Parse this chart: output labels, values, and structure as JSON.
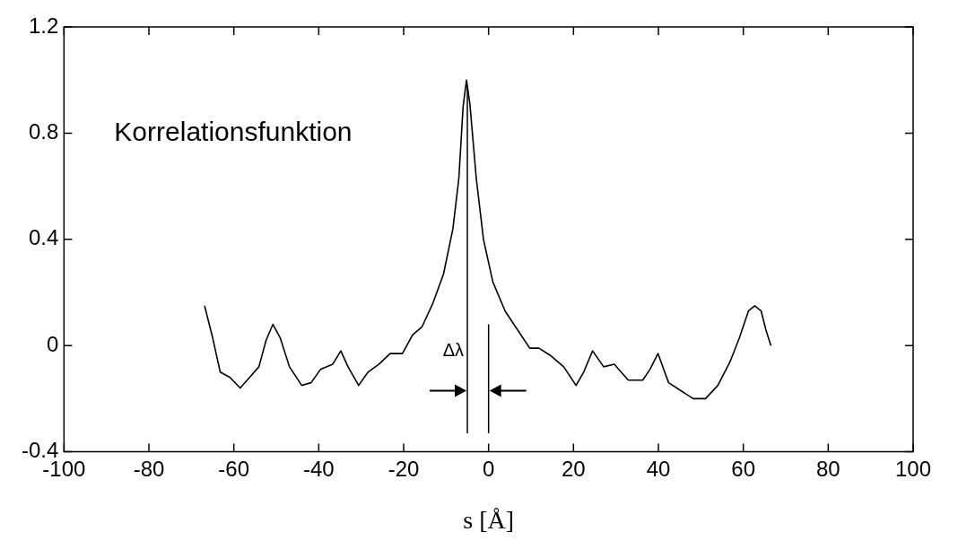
{
  "chart_data": {
    "type": "line",
    "xlabel": "s [Å]",
    "x": [
      -66.9,
      -65,
      -63.2,
      -60.9,
      -58.5,
      -56.3,
      -54.1,
      -52.4,
      -50.8,
      -49.1,
      -46.9,
      -44,
      -41.8,
      -39.6,
      -36.7,
      -34.8,
      -33.1,
      -30.6,
      -28.4,
      -25.8,
      -23.2,
      -20.3,
      -17.9,
      -15.7,
      -13.1,
      -10.6,
      -8.4,
      -7,
      -6,
      -5.2,
      -4.4,
      -2.9,
      -1.2,
      1,
      3.9,
      6.8,
      9.7,
      11.9,
      14.8,
      17.7,
      20.6,
      22.4,
      24.5,
      27.1,
      29.6,
      32.9,
      36.3,
      38,
      39.9,
      42.4,
      45.3,
      48.2,
      51.1,
      54,
      56.9,
      59.1,
      61.2,
      62.7,
      64.2,
      65.3,
      66.5
    ],
    "series": [
      {
        "color": "#000000",
        "values": [
          0.15,
          0.03,
          -0.1,
          -0.12,
          -0.16,
          -0.12,
          -0.08,
          0.02,
          0.08,
          0.03,
          -0.08,
          -0.15,
          -0.14,
          -0.09,
          -0.07,
          -0.02,
          -0.08,
          -0.15,
          -0.1,
          -0.07,
          -0.03,
          -0.03,
          0.04,
          0.07,
          0.16,
          0.27,
          0.44,
          0.63,
          0.9,
          1.0,
          0.91,
          0.63,
          0.4,
          0.24,
          0.13,
          0.06,
          -0.01,
          -0.01,
          -0.04,
          -0.08,
          -0.15,
          -0.1,
          -0.02,
          -0.08,
          -0.07,
          -0.13,
          -0.13,
          -0.09,
          -0.03,
          -0.14,
          -0.17,
          -0.2,
          -0.2,
          -0.15,
          -0.06,
          0.03,
          0.13,
          0.15,
          0.13,
          0.06,
          0.0
        ]
      }
    ],
    "xlim": [
      -100,
      100
    ],
    "xticks": [
      -100,
      -80,
      -60,
      -40,
      -20,
      0,
      20,
      40,
      60,
      80,
      100
    ],
    "ylim": [
      -0.4,
      1.2
    ],
    "yticks": [
      -0.4,
      0,
      0.4,
      0.8,
      1.2
    ],
    "grid": false,
    "legend": false,
    "marker": "none",
    "line_style": "solid",
    "ref_lines": [
      {
        "axis": "x",
        "value": -5,
        "label": null,
        "color": "#000000"
      },
      {
        "axis": "x",
        "value": 0,
        "label": null,
        "color": "#000000"
      }
    ],
    "annotations": [
      "Korrelationsfunktion",
      "Δλ"
    ]
  }
}
